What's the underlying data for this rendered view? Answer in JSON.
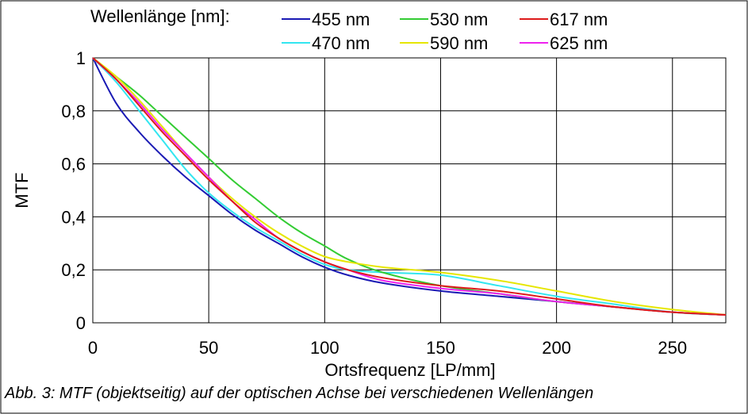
{
  "legend": {
    "title": "Wellenlänge [nm]:"
  },
  "caption": "Abb. 3: MTF (objektseitig) auf der optischen Achse bei verschiedenen Wellenlängen",
  "chart_data": {
    "type": "line",
    "xlabel": "Ortsfrequenz [LP/mm]",
    "ylabel": "MTF",
    "xlim": [
      0,
      273
    ],
    "ylim": [
      0,
      1
    ],
    "x_ticks": [
      0,
      50,
      100,
      150,
      200,
      250
    ],
    "y_ticks": [
      0,
      0.2,
      0.4,
      0.6,
      0.8,
      1
    ],
    "x_tick_labels": [
      "0",
      "50",
      "100",
      "150",
      "200",
      "250"
    ],
    "y_tick_labels": [
      "0",
      "0,2",
      "0,4",
      "0,6",
      "0,8",
      "1"
    ],
    "grid": true,
    "legend_position": "top",
    "series": [
      {
        "name": "455 nm",
        "color": "#1a1ab4",
        "x": [
          0,
          10,
          20,
          30,
          40,
          50,
          60,
          70,
          80,
          90,
          100,
          110,
          125,
          150,
          175,
          200,
          225,
          250,
          273
        ],
        "y": [
          1.0,
          0.83,
          0.72,
          0.63,
          0.55,
          0.48,
          0.41,
          0.35,
          0.3,
          0.25,
          0.21,
          0.18,
          0.15,
          0.12,
          0.1,
          0.08,
          0.06,
          0.04,
          0.03
        ]
      },
      {
        "name": "470 nm",
        "color": "#33e6f0",
        "x": [
          0,
          10,
          20,
          30,
          40,
          50,
          60,
          70,
          80,
          90,
          100,
          110,
          125,
          150,
          175,
          200,
          225,
          250,
          273
        ],
        "y": [
          1.0,
          0.91,
          0.8,
          0.69,
          0.58,
          0.49,
          0.42,
          0.36,
          0.31,
          0.26,
          0.22,
          0.2,
          0.19,
          0.18,
          0.14,
          0.1,
          0.07,
          0.04,
          0.03
        ]
      },
      {
        "name": "530 nm",
        "color": "#33cc33",
        "x": [
          0,
          10,
          20,
          30,
          40,
          50,
          60,
          70,
          80,
          90,
          100,
          110,
          125,
          150,
          175,
          200,
          225,
          250,
          273
        ],
        "y": [
          1.0,
          0.93,
          0.86,
          0.78,
          0.7,
          0.62,
          0.54,
          0.47,
          0.4,
          0.34,
          0.29,
          0.24,
          0.19,
          0.14,
          0.11,
          0.08,
          0.06,
          0.04,
          0.03
        ]
      },
      {
        "name": "590 nm",
        "color": "#e6e600",
        "x": [
          0,
          10,
          20,
          30,
          40,
          50,
          60,
          70,
          80,
          90,
          100,
          110,
          125,
          150,
          175,
          200,
          225,
          250,
          273
        ],
        "y": [
          1.0,
          0.93,
          0.84,
          0.74,
          0.64,
          0.55,
          0.47,
          0.4,
          0.34,
          0.29,
          0.25,
          0.23,
          0.21,
          0.19,
          0.16,
          0.12,
          0.08,
          0.05,
          0.03
        ]
      },
      {
        "name": "617 nm",
        "color": "#dd1a1a",
        "x": [
          0,
          10,
          20,
          30,
          40,
          50,
          60,
          70,
          80,
          90,
          100,
          110,
          125,
          150,
          175,
          200,
          225,
          250,
          273
        ],
        "y": [
          1.0,
          0.92,
          0.82,
          0.72,
          0.63,
          0.54,
          0.46,
          0.38,
          0.32,
          0.27,
          0.23,
          0.2,
          0.17,
          0.14,
          0.12,
          0.09,
          0.06,
          0.04,
          0.03
        ]
      },
      {
        "name": "625 nm",
        "color": "#ee22ee",
        "x": [
          0,
          10,
          20,
          30,
          40,
          50,
          60,
          70,
          80,
          90,
          100,
          110,
          125,
          150,
          175,
          200,
          225,
          250,
          273
        ],
        "y": [
          1.0,
          0.92,
          0.83,
          0.73,
          0.64,
          0.55,
          0.46,
          0.39,
          0.32,
          0.27,
          0.23,
          0.2,
          0.16,
          0.13,
          0.11,
          0.08,
          0.06,
          0.04,
          0.03
        ]
      }
    ]
  }
}
